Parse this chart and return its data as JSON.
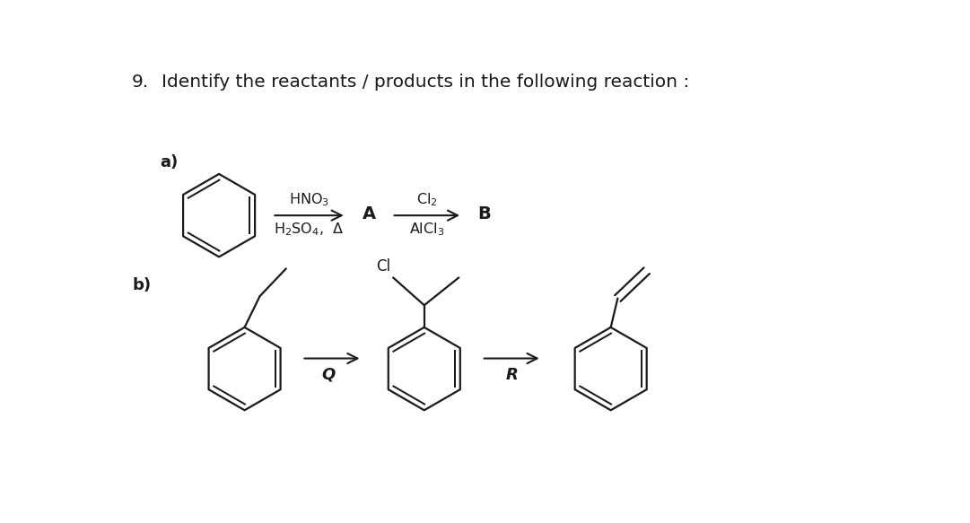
{
  "title_num": "9.",
  "title_text": "Identify the reactants / products in the following reaction :",
  "background_color": "#ffffff",
  "text_color": "#1a1a1a",
  "title_fontsize": 14.5,
  "label_a": "a)",
  "label_b": "b)",
  "arrow1_label_top": "HNO$_3$",
  "arrow1_label_bot": "H$_2$SO$_4$,  Δ",
  "arrow2_label_top": "Cl$_2$",
  "arrow2_label_bot": "AlCl$_3$",
  "letter_A": "A",
  "letter_B": "B",
  "letter_Q": "Q",
  "letter_R": "R",
  "Cl_label": "Cl"
}
